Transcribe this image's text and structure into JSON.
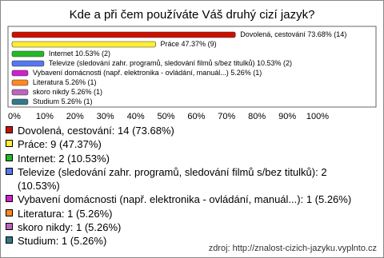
{
  "chart_data": {
    "type": "bar",
    "orientation": "horizontal",
    "title": "Kde a při čem používáte Váš druhý cizí jazyk?",
    "categories": [
      "Dovolená, cestování",
      "Práce",
      "Internet",
      "Televize (sledování zahr. programů, sledování filmů s/bez titulků)",
      "Vybavení domácnosti (např. elektronika - ovládání, manuál...)",
      "Literatura",
      "skoro nikdy",
      "Studium"
    ],
    "values": [
      73.68,
      47.37,
      10.53,
      10.53,
      5.26,
      5.26,
      5.26,
      5.26
    ],
    "value_labels": [
      "Dovolená, cestování 73.68% (14)",
      "Práce 47.37% (9)",
      "Internet 10.53% (2)",
      "Televize (sledování zahr. programů, sledování filmů s/bez titulků) 10.53% (2)",
      "Vybavení domácnosti (např. elektronika - ovládání, manuál...) 5.26% (1)",
      "Literatura 5.26% (1)",
      "skoro nikdy 5.26% (1)",
      "Studium 5.26% (1)"
    ],
    "legend_labels": [
      "Dovolená, cestování: 14 (73.68%)",
      "Práce: 9 (47.37%)",
      "Internet: 2 (10.53%)",
      "Televize (sledování zahr. programů, sledování filmů s/bez titulků): 2 (10.53%)",
      "Vybavení domácnosti (např. elektronika - ovládání, manuál...): 1 (5.26%)",
      "Literatura: 1 (5.26%)",
      "skoro nikdy: 1 (5.26%)",
      "Studium: 1 (5.26%)"
    ],
    "colors": [
      "#cc1100",
      "#ffee33",
      "#22bb22",
      "#5577ee",
      "#cc22cc",
      "#ff8822",
      "#bb66bb",
      "#337788"
    ],
    "xlim": [
      0,
      100
    ],
    "xticks": [
      {
        "value": 0,
        "label": "0%"
      },
      {
        "value": 10,
        "label": "10%"
      },
      {
        "value": 20,
        "label": "20%"
      },
      {
        "value": 30,
        "label": "30%"
      },
      {
        "value": 40,
        "label": "40%"
      },
      {
        "value": 50,
        "label": "50%"
      },
      {
        "value": 60,
        "label": "60%"
      },
      {
        "value": 70,
        "label": "70%"
      },
      {
        "value": 80,
        "label": "80%"
      },
      {
        "value": 90,
        "label": "90%"
      },
      {
        "value": 100,
        "label": "100%"
      }
    ],
    "source": "zdroj: http://znalost-cizich-jazyku.vyplnto.cz"
  }
}
